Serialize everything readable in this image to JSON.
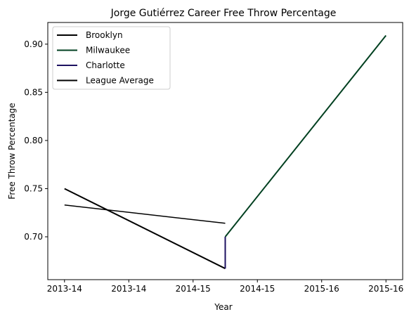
{
  "chart_data": {
    "type": "line",
    "title": "Jorge Gutiérrez  Career Free Throw Percentage",
    "xlabel": "Year",
    "ylabel": "Free Throw Percentage",
    "x_ticks": [
      "2013-14",
      "2013-14",
      "2014-15",
      "2014-15",
      "2015-16",
      "2015-16"
    ],
    "x_tick_positions": [
      0,
      0.5,
      1.0,
      1.5,
      2.0,
      2.5
    ],
    "xlim": [
      -0.13,
      2.63
    ],
    "ylim": [
      0.6555,
      0.9225
    ],
    "y_ticks": [
      "0.70",
      "0.75",
      "0.80",
      "0.85",
      "0.90"
    ],
    "y_tick_values": [
      0.7,
      0.75,
      0.8,
      0.85,
      0.9
    ],
    "grid": false,
    "legend_position": "upper-left",
    "series": [
      {
        "name": "Brooklyn",
        "color": "#000000",
        "x": [
          0,
          1.25,
          1.25
        ],
        "y": [
          0.75,
          0.667,
          0.667
        ]
      },
      {
        "name": "Milwaukee",
        "color": "#004020",
        "x": [
          1.25,
          2.5
        ],
        "y": [
          0.7,
          0.909
        ]
      },
      {
        "name": "Charlotte",
        "color": "#1d1160",
        "x": [
          1.25,
          1.25
        ],
        "y": [
          0.667,
          0.7
        ]
      },
      {
        "name": "League Average",
        "color": "#000000",
        "x": [
          0,
          1.25
        ],
        "y": [
          0.733,
          0.714
        ]
      }
    ]
  }
}
